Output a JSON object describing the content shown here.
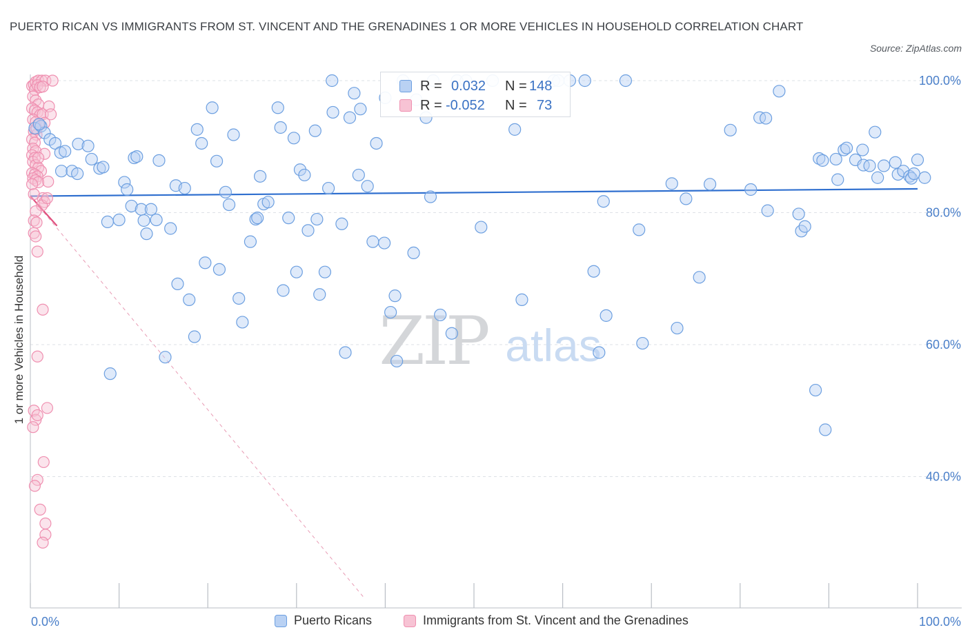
{
  "title": "PUERTO RICAN VS IMMIGRANTS FROM ST. VINCENT AND THE GRENADINES 1 OR MORE VEHICLES IN HOUSEHOLD CORRELATION CHART",
  "source": "Source: ZipAtlas.com",
  "watermark": {
    "zip": "ZIP",
    "atlas": "atlas"
  },
  "colors": {
    "blue": "#6c9fe0",
    "blue_fill": "#b9d1f3",
    "blue_line": "#2f6fcf",
    "pink": "#ef8fb0",
    "pink_fill": "#f7c3d4",
    "pink_line": "#e0507e",
    "tick_text": "#4a7fc9"
  },
  "legend_top": [
    {
      "r_label": "R =",
      "r_value": "0.032",
      "n_label": "N =",
      "n_value": "148"
    },
    {
      "r_label": "R =",
      "r_value": "-0.052",
      "n_label": "N =",
      "n_value": "73"
    }
  ],
  "chart_data": {
    "type": "scatter",
    "title": "PUERTO RICAN VS IMMIGRANTS FROM ST. VINCENT AND THE GRENADINES 1 OR MORE VEHICLES IN HOUSEHOLD CORRELATION CHART",
    "xlabel": "",
    "ylabel": "1 or more Vehicles in Household",
    "xlim": [
      0,
      100
    ],
    "ylim": [
      20,
      102
    ],
    "x_tick_labels": [
      "0.0%",
      "100.0%"
    ],
    "y_ticks": [
      40,
      60,
      80,
      100
    ],
    "y_tick_labels": [
      "40.0%",
      "60.0%",
      "80.0%",
      "100.0%"
    ],
    "grid": true,
    "legend_position": "bottom",
    "series": [
      {
        "name": "Puerto Ricans",
        "color": "#6c9fe0",
        "r": 0.032,
        "n": 148,
        "trend": {
          "x": [
            0,
            100
          ],
          "y": [
            82.5,
            83.6
          ]
        },
        "points": [
          [
            0.5,
            92.8
          ],
          [
            1.2,
            93.1
          ],
          [
            1.6,
            92.1
          ],
          [
            2.2,
            91.1
          ],
          [
            2.8,
            90.5
          ],
          [
            3.4,
            89.1
          ],
          [
            3.9,
            89.3
          ],
          [
            3.5,
            86.3
          ],
          [
            4.7,
            86.3
          ],
          [
            5.3,
            85.9
          ],
          [
            5.4,
            90.4
          ],
          [
            6.5,
            90.1
          ],
          [
            6.9,
            88.1
          ],
          [
            7.8,
            86.7
          ],
          [
            8.2,
            86.9
          ],
          [
            9.0,
            55.6
          ],
          [
            8.7,
            78.6
          ],
          [
            10.0,
            78.9
          ],
          [
            10.6,
            84.6
          ],
          [
            10.9,
            83.5
          ],
          [
            11.4,
            81.0
          ],
          [
            11.7,
            88.3
          ],
          [
            12.0,
            88.5
          ],
          [
            12.5,
            80.5
          ],
          [
            12.8,
            78.8
          ],
          [
            13.1,
            76.8
          ],
          [
            13.6,
            80.5
          ],
          [
            14.2,
            78.9
          ],
          [
            14.5,
            87.9
          ],
          [
            15.2,
            58.1
          ],
          [
            15.8,
            77.6
          ],
          [
            16.4,
            84.1
          ],
          [
            16.6,
            69.2
          ],
          [
            17.4,
            83.7
          ],
          [
            17.9,
            66.8
          ],
          [
            18.5,
            61.2
          ],
          [
            18.8,
            92.6
          ],
          [
            19.3,
            90.5
          ],
          [
            19.7,
            72.4
          ],
          [
            20.5,
            95.9
          ],
          [
            21.0,
            87.8
          ],
          [
            21.3,
            71.4
          ],
          [
            22.0,
            83.1
          ],
          [
            22.4,
            81.2
          ],
          [
            22.9,
            91.8
          ],
          [
            23.5,
            67.0
          ],
          [
            23.9,
            63.4
          ],
          [
            24.8,
            75.6
          ],
          [
            25.4,
            79.0
          ],
          [
            25.6,
            79.2
          ],
          [
            25.9,
            85.5
          ],
          [
            26.3,
            81.3
          ],
          [
            26.8,
            81.6
          ],
          [
            27.9,
            95.9
          ],
          [
            28.2,
            92.9
          ],
          [
            28.5,
            68.2
          ],
          [
            29.1,
            79.2
          ],
          [
            29.7,
            91.3
          ],
          [
            30.0,
            71.0
          ],
          [
            30.4,
            86.5
          ],
          [
            30.9,
            85.7
          ],
          [
            31.3,
            77.3
          ],
          [
            32.1,
            92.4
          ],
          [
            32.3,
            79.0
          ],
          [
            32.6,
            67.6
          ],
          [
            33.2,
            71.0
          ],
          [
            33.6,
            83.7
          ],
          [
            34.0,
            100.0
          ],
          [
            34.1,
            95.2
          ],
          [
            35.1,
            78.3
          ],
          [
            35.5,
            58.8
          ],
          [
            36.0,
            94.4
          ],
          [
            36.5,
            98.1
          ],
          [
            37.0,
            85.7
          ],
          [
            37.2,
            95.7
          ],
          [
            38.0,
            84.0
          ],
          [
            38.6,
            75.6
          ],
          [
            39.0,
            90.5
          ],
          [
            39.9,
            75.4
          ],
          [
            40.0,
            97.4
          ],
          [
            40.6,
            64.9
          ],
          [
            41.1,
            67.4
          ],
          [
            41.3,
            57.5
          ],
          [
            42.0,
            100.0
          ],
          [
            43.2,
            73.9
          ],
          [
            43.5,
            97.1
          ],
          [
            44.6,
            94.4
          ],
          [
            45.1,
            82.4
          ],
          [
            45.4,
            100.0
          ],
          [
            46.2,
            64.5
          ],
          [
            47.5,
            61.7
          ],
          [
            48.1,
            100.0
          ],
          [
            49.1,
            100.0
          ],
          [
            50.8,
            77.8
          ],
          [
            52.1,
            100.0
          ],
          [
            54.6,
            92.6
          ],
          [
            55.4,
            66.8
          ],
          [
            59.0,
            100.0
          ],
          [
            59.5,
            100.0
          ],
          [
            60.8,
            100.0
          ],
          [
            62.5,
            100.0
          ],
          [
            63.5,
            71.1
          ],
          [
            64.1,
            58.8
          ],
          [
            64.6,
            81.7
          ],
          [
            64.9,
            64.4
          ],
          [
            67.1,
            100.0
          ],
          [
            68.6,
            77.4
          ],
          [
            69.0,
            60.2
          ],
          [
            72.3,
            84.4
          ],
          [
            72.9,
            62.5
          ],
          [
            73.9,
            82.1
          ],
          [
            75.4,
            70.2
          ],
          [
            76.6,
            84.3
          ],
          [
            78.9,
            92.5
          ],
          [
            81.2,
            83.5
          ],
          [
            82.2,
            94.4
          ],
          [
            82.9,
            94.3
          ],
          [
            83.1,
            80.3
          ],
          [
            84.4,
            98.4
          ],
          [
            86.6,
            79.8
          ],
          [
            86.9,
            77.2
          ],
          [
            87.3,
            77.9
          ],
          [
            88.5,
            53.1
          ],
          [
            88.9,
            88.2
          ],
          [
            89.3,
            87.9
          ],
          [
            89.6,
            47.1
          ],
          [
            90.8,
            88.1
          ],
          [
            91.0,
            85.0
          ],
          [
            91.7,
            89.5
          ],
          [
            92.0,
            89.8
          ],
          [
            93.0,
            88.0
          ],
          [
            93.8,
            89.5
          ],
          [
            93.9,
            87.2
          ],
          [
            94.6,
            87.1
          ],
          [
            95.2,
            92.2
          ],
          [
            95.5,
            85.3
          ],
          [
            96.2,
            87.1
          ],
          [
            97.5,
            87.6
          ],
          [
            97.8,
            85.8
          ],
          [
            98.4,
            86.3
          ],
          [
            99.1,
            85.5
          ],
          [
            99.3,
            85.2
          ],
          [
            99.6,
            85.9
          ],
          [
            100.0,
            88.0
          ],
          [
            100.8,
            85.3
          ],
          [
            1.0,
            93.4
          ]
        ]
      },
      {
        "name": "Immigrants from St. Vincent and the Grenadines",
        "color": "#ef8fb0",
        "r": -0.052,
        "n": 73,
        "trend": {
          "x": [
            0,
            3.0
          ],
          "y": [
            82.5,
            78.0
          ],
          "extended": {
            "x": [
              0,
              37.7
            ],
            "y": [
              82.5,
              21.5
            ]
          }
        },
        "points": [
          [
            0.2,
            99.2
          ],
          [
            0.4,
            99.4
          ],
          [
            0.6,
            99.8
          ],
          [
            0.9,
            100.0
          ],
          [
            1.3,
            100.0
          ],
          [
            1.7,
            100.0
          ],
          [
            2.5,
            100.0
          ],
          [
            0.5,
            98.6
          ],
          [
            0.8,
            99.3
          ],
          [
            1.1,
            99.0
          ],
          [
            1.4,
            99.1
          ],
          [
            0.3,
            97.6
          ],
          [
            0.6,
            97.0
          ],
          [
            0.9,
            96.4
          ],
          [
            0.2,
            95.8
          ],
          [
            0.5,
            95.5
          ],
          [
            0.8,
            95.2
          ],
          [
            1.1,
            94.8
          ],
          [
            1.4,
            94.9
          ],
          [
            0.3,
            94.1
          ],
          [
            0.6,
            93.7
          ],
          [
            0.9,
            93.4
          ],
          [
            1.6,
            93.6
          ],
          [
            2.1,
            96.1
          ],
          [
            2.3,
            94.9
          ],
          [
            0.4,
            92.3
          ],
          [
            0.7,
            91.8
          ],
          [
            0.2,
            91.1
          ],
          [
            0.5,
            90.6
          ],
          [
            0.3,
            89.7
          ],
          [
            0.6,
            89.3
          ],
          [
            0.2,
            88.7
          ],
          [
            0.5,
            88.3
          ],
          [
            1.6,
            88.9
          ],
          [
            0.3,
            87.7
          ],
          [
            0.6,
            87.2
          ],
          [
            0.9,
            86.8
          ],
          [
            1.2,
            86.3
          ],
          [
            0.2,
            86.0
          ],
          [
            0.5,
            85.8
          ],
          [
            0.8,
            85.5
          ],
          [
            0.3,
            85.2
          ],
          [
            0.6,
            84.9
          ],
          [
            0.9,
            84.6
          ],
          [
            0.2,
            84.3
          ],
          [
            1.4,
            82.2
          ],
          [
            1.6,
            81.6
          ],
          [
            1.3,
            81.1
          ],
          [
            0.6,
            80.2
          ],
          [
            0.4,
            78.8
          ],
          [
            0.7,
            78.5
          ],
          [
            0.4,
            76.9
          ],
          [
            0.6,
            76.4
          ],
          [
            0.8,
            74.1
          ],
          [
            1.4,
            65.3
          ],
          [
            0.8,
            58.2
          ],
          [
            1.9,
            50.4
          ],
          [
            0.4,
            50.0
          ],
          [
            0.6,
            48.6
          ],
          [
            0.8,
            49.3
          ],
          [
            0.3,
            47.5
          ],
          [
            1.5,
            42.2
          ],
          [
            0.8,
            39.5
          ],
          [
            0.5,
            38.6
          ],
          [
            1.1,
            35.0
          ],
          [
            1.7,
            32.9
          ],
          [
            1.7,
            31.2
          ],
          [
            1.4,
            30.0
          ],
          [
            0.9,
            88.3
          ],
          [
            0.7,
            92.7
          ],
          [
            1.9,
            82.2
          ],
          [
            2.0,
            84.7
          ],
          [
            0.4,
            82.8
          ]
        ]
      }
    ]
  },
  "legend_bottom": [
    {
      "label": "Puerto Ricans"
    },
    {
      "label": "Immigrants from St. Vincent and the Grenadines"
    }
  ]
}
